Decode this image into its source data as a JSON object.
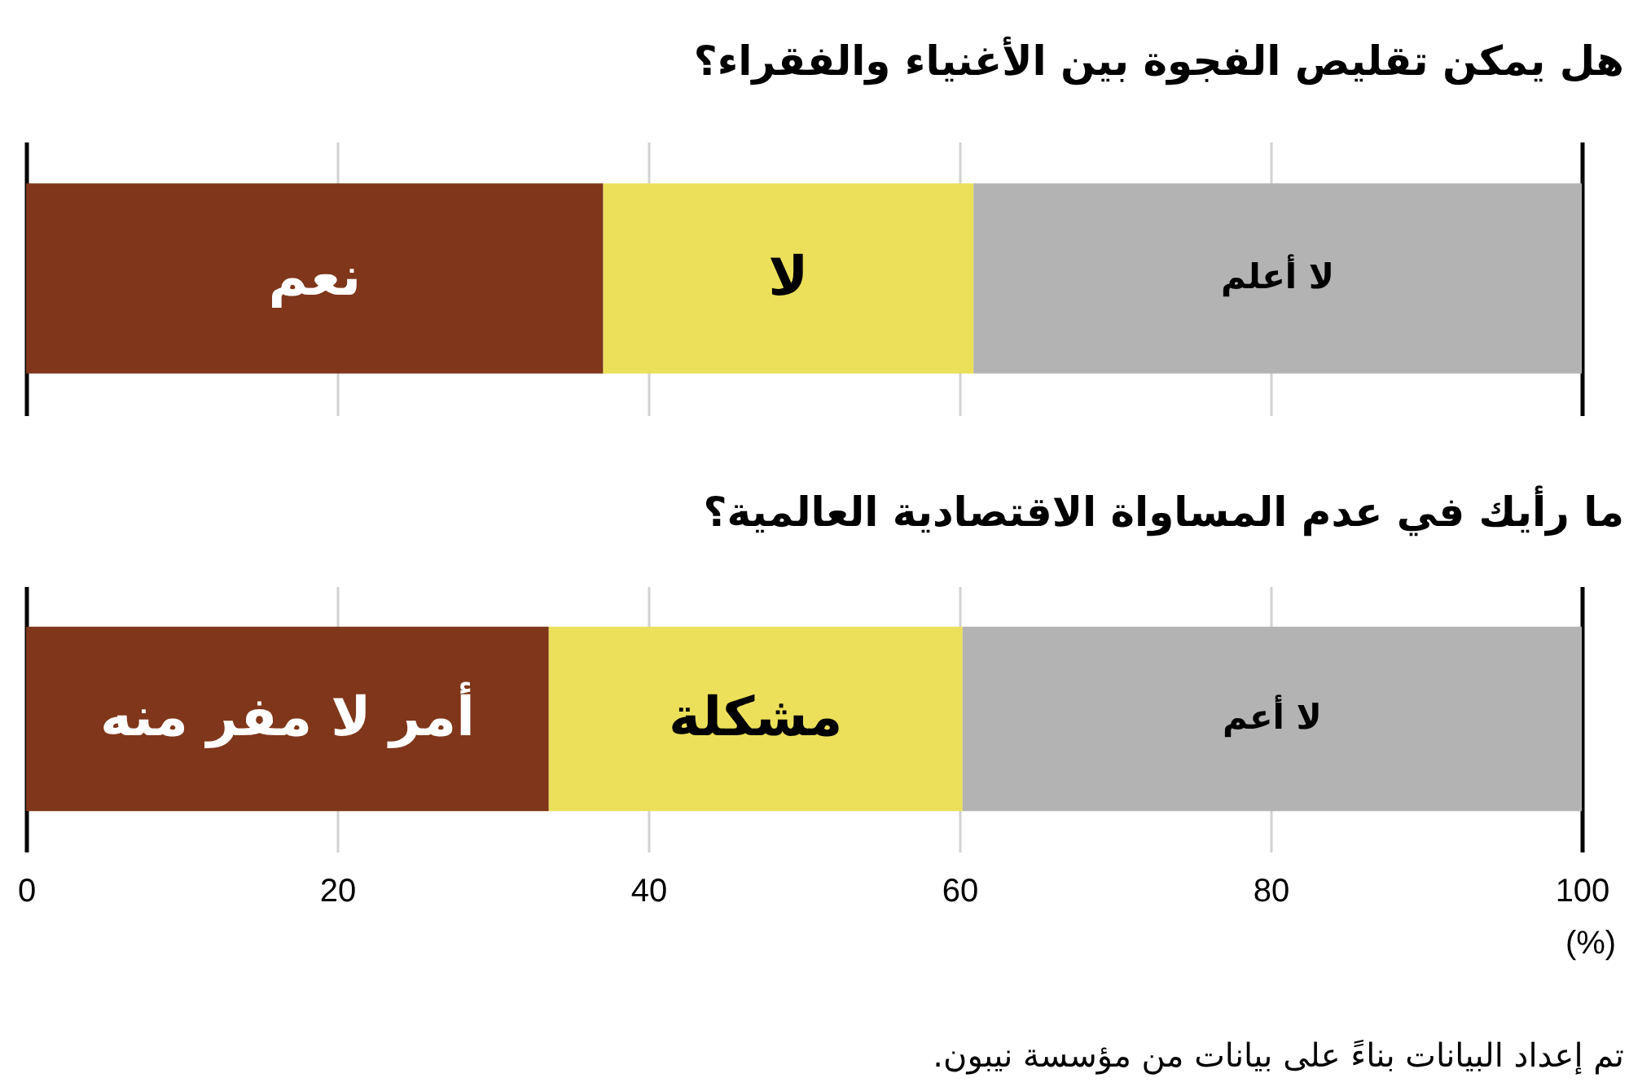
{
  "chart_data": [
    {
      "type": "bar",
      "orientation": "horizontal",
      "stacked": true,
      "title": "هل يمكن تقليص الفجوة بين الأغنياء والفقراء؟",
      "categories": [
        null
      ],
      "series": [
        {
          "name": "نعم",
          "color": "#7f361a",
          "values": [
            37.1
          ]
        },
        {
          "name": "لا",
          "color": "#ece05a",
          "values": [
            23.8
          ]
        },
        {
          "name": "لا أعلم",
          "color": "#b3b3b3",
          "values": [
            39.1
          ]
        }
      ],
      "xlim": [
        0,
        100
      ],
      "xticks": [
        0,
        20,
        40,
        60,
        80,
        100
      ],
      "grid": "x",
      "legend": false,
      "tick_labels": false
    },
    {
      "type": "bar",
      "orientation": "horizontal",
      "stacked": true,
      "title": "ما رأيك في عدم المساواة الاقتصادية العالمية؟",
      "categories": [
        null
      ],
      "series": [
        {
          "name": "أمر لا مفر منه",
          "color": "#7f361a",
          "values": [
            33.6
          ]
        },
        {
          "name": "مشكلة",
          "color": "#ece05a",
          "values": [
            26.6
          ]
        },
        {
          "name": "لا أعم",
          "color": "#b3b3b3",
          "values": [
            39.8
          ]
        }
      ],
      "xlim": [
        0,
        100
      ],
      "xticks": [
        0,
        20,
        40,
        60,
        80,
        100
      ],
      "xlabel": "(%)",
      "grid": "x",
      "legend": false,
      "annotations": [
        "تم إعداد البيانات بناءً على بيانات من مؤسسة نيبون."
      ]
    }
  ]
}
